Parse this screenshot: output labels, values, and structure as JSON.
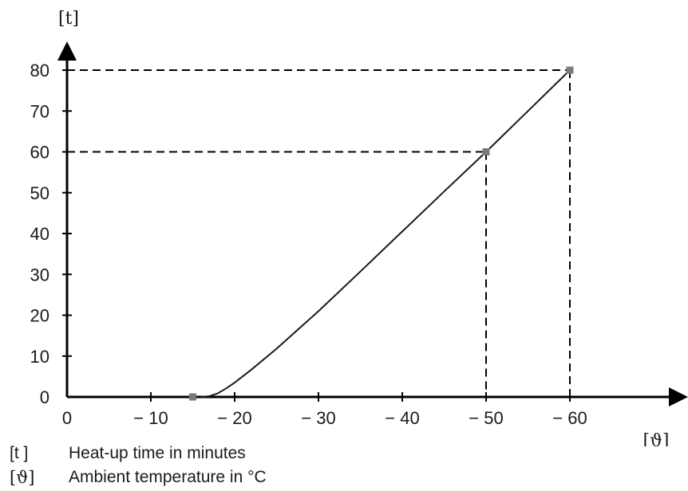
{
  "chart_data": {
    "type": "line",
    "y_unit_label": "[t]",
    "x_unit_label": "[ϑ]",
    "x_ticks": [
      {
        "value": 0,
        "label": "0"
      },
      {
        "value": -10,
        "label": "− 10"
      },
      {
        "value": -20,
        "label": "− 20"
      },
      {
        "value": -30,
        "label": "− 30"
      },
      {
        "value": -40,
        "label": "− 40"
      },
      {
        "value": -50,
        "label": "− 50"
      },
      {
        "value": -60,
        "label": "− 60"
      }
    ],
    "y_ticks": [
      {
        "value": 0,
        "label": "0"
      },
      {
        "value": 10,
        "label": "10"
      },
      {
        "value": 20,
        "label": "20"
      },
      {
        "value": 30,
        "label": "30"
      },
      {
        "value": 40,
        "label": "40"
      },
      {
        "value": 50,
        "label": "50"
      },
      {
        "value": 60,
        "label": "60"
      },
      {
        "value": 70,
        "label": "70"
      },
      {
        "value": 80,
        "label": "80"
      }
    ],
    "xlim": [
      0,
      -70
    ],
    "ylim": [
      0,
      88
    ],
    "grid": false,
    "series": [
      {
        "x": [
          -16,
          -17,
          -18,
          -19,
          -20,
          -22,
          -25,
          -30,
          -35,
          -40,
          -45,
          -50,
          -55,
          -60
        ],
        "y": [
          0,
          0.2,
          0.9,
          2.1,
          3.5,
          6.7,
          11.8,
          21.0,
          30.7,
          40.5,
          50.3,
          60,
          70,
          80
        ]
      }
    ],
    "markers": [
      {
        "x": -15,
        "y": 0
      },
      {
        "x": -50,
        "y": 60
      },
      {
        "x": -60,
        "y": 80
      }
    ],
    "reference_lines": [
      {
        "x": -50,
        "y": 60
      },
      {
        "x": -60,
        "y": 80
      }
    ]
  },
  "legend": [
    {
      "symbol": "[t ]",
      "text": "Heat-up time in minutes"
    },
    {
      "symbol": "[ϑ]",
      "text": "Ambient temperature in °C"
    }
  ],
  "colors": {
    "axis": "#000000",
    "line": "#1a1a1a",
    "marker": "#7a7a7a",
    "text": "#1a1a1a"
  }
}
